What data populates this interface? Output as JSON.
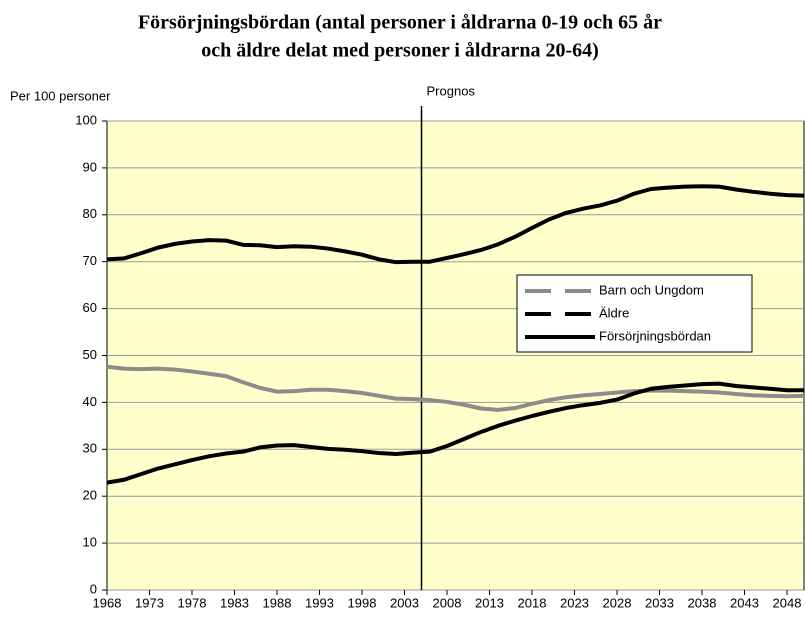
{
  "chart_data": {
    "type": "line",
    "title": [
      "Försörjningsbördan (antal personer i åldrarna 0-19 och 65 år",
      "och äldre delat med personer i åldrarna 20-64)"
    ],
    "y_label": "Per 100 personer",
    "annotation": {
      "text": "Prognos",
      "x": 2005
    },
    "x": [
      1968,
      1970,
      1972,
      1974,
      1976,
      1978,
      1980,
      1982,
      1984,
      1986,
      1988,
      1990,
      1992,
      1994,
      1996,
      1998,
      2000,
      2002,
      2004,
      2006,
      2008,
      2010,
      2012,
      2014,
      2016,
      2018,
      2020,
      2022,
      2024,
      2026,
      2028,
      2030,
      2032,
      2034,
      2036,
      2038,
      2040,
      2042,
      2044,
      2046,
      2048,
      2050
    ],
    "series": [
      {
        "name": "Barn och Ungdom",
        "color": "#8c8c8c",
        "legend_dashed": true,
        "values": [
          47.6,
          47.2,
          47.1,
          47.2,
          47.0,
          46.6,
          46.1,
          45.6,
          44.3,
          43.1,
          42.3,
          42.4,
          42.7,
          42.7,
          42.4,
          42.0,
          41.4,
          40.8,
          40.7,
          40.5,
          40.1,
          39.5,
          38.7,
          38.4,
          38.8,
          39.7,
          40.5,
          41.1,
          41.5,
          41.8,
          42.1,
          42.4,
          42.5,
          42.5,
          42.4,
          42.3,
          42.1,
          41.8,
          41.5,
          41.4,
          41.3,
          41.4
        ]
      },
      {
        "name": "Äldre",
        "color": "#000000",
        "legend_dashed": true,
        "values": [
          22.9,
          23.5,
          24.7,
          25.9,
          26.8,
          27.7,
          28.5,
          29.1,
          29.5,
          30.4,
          30.8,
          30.9,
          30.5,
          30.1,
          29.9,
          29.6,
          29.2,
          29.0,
          29.3,
          29.5,
          30.7,
          32.2,
          33.7,
          35.0,
          36.1,
          37.1,
          38.0,
          38.8,
          39.4,
          39.9,
          40.6,
          41.9,
          42.9,
          43.3,
          43.6,
          43.9,
          44.0,
          43.5,
          43.2,
          42.9,
          42.6,
          42.6
        ]
      },
      {
        "name": "Försörjningsbördan",
        "color": "#000000",
        "legend_dashed": false,
        "values": [
          70.5,
          70.7,
          71.8,
          73.0,
          73.8,
          74.3,
          74.6,
          74.5,
          73.6,
          73.5,
          73.1,
          73.3,
          73.2,
          72.8,
          72.2,
          71.5,
          70.5,
          69.9,
          70.0,
          70.0,
          70.8,
          71.6,
          72.5,
          73.7,
          75.3,
          77.2,
          79.0,
          80.4,
          81.3,
          82.0,
          83.0,
          84.5,
          85.5,
          85.8,
          86.0,
          86.1,
          86.0,
          85.4,
          84.9,
          84.5,
          84.2,
          84.1
        ]
      }
    ],
    "xlim": [
      1968,
      2050
    ],
    "xticks": [
      1968,
      1973,
      1978,
      1983,
      1988,
      1993,
      1998,
      2003,
      2008,
      2013,
      2018,
      2023,
      2028,
      2033,
      2038,
      2043,
      2048
    ],
    "ylim": [
      0,
      100
    ],
    "yticks": [
      0,
      10,
      20,
      30,
      40,
      50,
      60,
      70,
      80,
      90,
      100
    ],
    "grid": true,
    "plot_background": "#ffffcc"
  }
}
